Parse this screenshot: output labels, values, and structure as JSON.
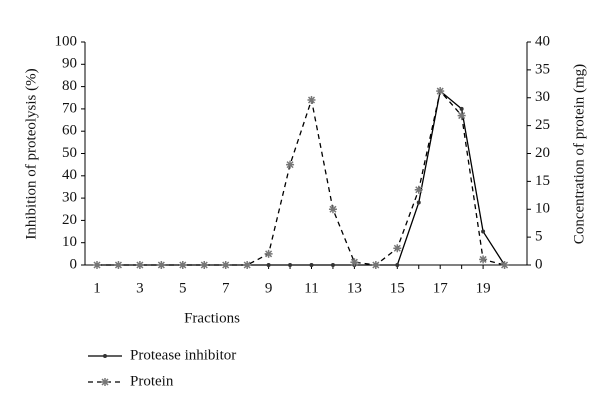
{
  "chart_data": {
    "type": "line",
    "x_label": "Fractions",
    "y_label": "Inhibition of proteolysis (%)",
    "y2_label": "Concentration of protein (mg)",
    "categories": [
      "1",
      null,
      "3",
      null,
      "5",
      null,
      "7",
      null,
      "9",
      null,
      "11",
      null,
      "13",
      null,
      "15",
      null,
      "17",
      null,
      "19",
      null
    ],
    "ylim": [
      0,
      100
    ],
    "yticks": [
      0,
      10,
      20,
      30,
      40,
      50,
      60,
      70,
      80,
      90,
      100
    ],
    "y2lim": [
      0,
      40
    ],
    "y2ticks": [
      0,
      5,
      10,
      15,
      20,
      25,
      30,
      35,
      40
    ],
    "series": [
      {
        "name": "Protease inhibitor",
        "color": "#000000",
        "dash": "solid",
        "values": [
          0,
          0,
          0,
          0,
          0,
          0,
          0,
          0,
          0,
          0,
          0,
          0,
          0,
          0,
          0,
          28,
          78,
          70,
          15,
          0
        ]
      },
      {
        "name": "Protein",
        "color": "#000000",
        "dash": "dashed",
        "axis": "y2",
        "values": [
          0,
          0,
          0,
          0,
          0,
          0,
          0,
          0,
          2,
          18,
          29.6,
          10,
          0.5,
          0,
          3,
          13.5,
          31.2,
          26.8,
          1,
          0
        ]
      }
    ]
  }
}
